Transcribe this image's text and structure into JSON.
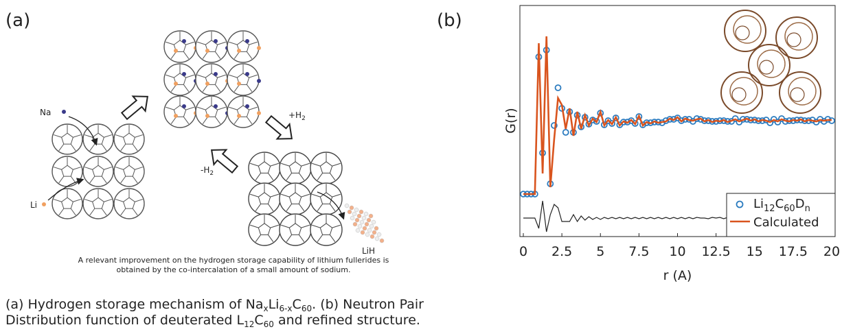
{
  "panel_a": {
    "label": "(a)",
    "na_label": "Na",
    "li_label": "Li",
    "plus_h2": [
      "+H",
      "2"
    ],
    "minus_h2": [
      "-H",
      "2"
    ],
    "lih_label": "LiH",
    "note": [
      "A relevant improvement on the hydrogen storage capability of lithium fullerides is",
      "obtained by the co-intercalation of a small amount of sodium."
    ]
  },
  "panel_b_label": "(b)",
  "caption": [
    [
      "(a) Hydrogen storage mechanism of Na",
      "x",
      "Li",
      "6-x",
      "C",
      "60",
      ". (b) Neutron Pair"
    ],
    [
      "Distribution function of deuterated L",
      "12",
      "C",
      "60",
      " and refined structure."
    ]
  ],
  "chart_data": {
    "type": "line",
    "xlabel": "r (A)",
    "ylabel": "G(r)",
    "xlim": [
      0,
      20
    ],
    "ylim": [
      -0.62,
      2.75
    ],
    "xticks": [
      0,
      2.5,
      5,
      7.5,
      10,
      12.5,
      15,
      17.5,
      20
    ],
    "legend": "lower right",
    "x": [
      0,
      0.25,
      0.5,
      0.75,
      1,
      1.25,
      1.5,
      1.75,
      2,
      2.25,
      2.5,
      2.75,
      3,
      3.25,
      3.5,
      3.75,
      4,
      4.25,
      4.5,
      4.75,
      5,
      5.25,
      5.5,
      5.75,
      6,
      6.25,
      6.5,
      6.75,
      7,
      7.25,
      7.5,
      7.75,
      8,
      8.25,
      8.5,
      8.75,
      9,
      9.25,
      9.5,
      9.75,
      10,
      10.25,
      10.5,
      10.75,
      11,
      11.25,
      11.5,
      11.75,
      12,
      12.25,
      12.5,
      12.75,
      13,
      13.25,
      13.5,
      13.75,
      14,
      14.25,
      14.5,
      14.75,
      15,
      15.25,
      15.5,
      15.75,
      16,
      16.25,
      16.5,
      16.75,
      17,
      17.25,
      17.5,
      17.75,
      18,
      18.25,
      18.5,
      18.75,
      19,
      19.25,
      19.5,
      19.75,
      20
    ],
    "series": [
      {
        "name": [
          "Li",
          "12",
          "C",
          "60",
          "D",
          "n"
        ],
        "color": "#2b7bbf",
        "marker": "circle",
        "values": [
          0,
          0,
          0,
          0,
          2.0,
          0.6,
          2.1,
          0.15,
          1.0,
          1.55,
          1.25,
          0.9,
          1.2,
          0.9,
          1.15,
          0.98,
          1.12,
          1.02,
          1.08,
          1.06,
          1.18,
          1.01,
          1.07,
          1.03,
          1.11,
          1.01,
          1.05,
          1.05,
          1.07,
          1.03,
          1.13,
          1.01,
          1.04,
          1.04,
          1.05,
          1.05,
          1.04,
          1.07,
          1.09,
          1.09,
          1.11,
          1.07,
          1.09,
          1.09,
          1.06,
          1.1,
          1.09,
          1.07,
          1.07,
          1.06,
          1.06,
          1.07,
          1.07,
          1.06,
          1.06,
          1.1,
          1.05,
          1.09,
          1.09,
          1.08,
          1.08,
          1.07,
          1.07,
          1.08,
          1.04,
          1.09,
          1.05,
          1.1,
          1.06,
          1.07,
          1.07,
          1.08,
          1.08,
          1.07,
          1.07,
          1.08,
          1.05,
          1.09,
          1.06,
          1.09,
          1.07
        ]
      },
      {
        "name": "Calculated",
        "color": "#d9541e",
        "marker": "line",
        "values": [
          0,
          0,
          0,
          0,
          2.2,
          0.3,
          2.3,
          0.1,
          0.8,
          1.4,
          1.3,
          0.95,
          1.25,
          0.85,
          1.2,
          0.95,
          1.15,
          1.0,
          1.1,
          1.05,
          1.2,
          1.0,
          1.08,
          1.02,
          1.12,
          1.0,
          1.06,
          1.04,
          1.08,
          1.02,
          1.14,
          1.0,
          1.05,
          1.03,
          1.06,
          1.04,
          1.05,
          1.06,
          1.1,
          1.08,
          1.12,
          1.06,
          1.1,
          1.08,
          1.07,
          1.09,
          1.1,
          1.06,
          1.08,
          1.05,
          1.07,
          1.06,
          1.08,
          1.05,
          1.07,
          1.09,
          1.06,
          1.08,
          1.1,
          1.07,
          1.09,
          1.06,
          1.08,
          1.07,
          1.05,
          1.08,
          1.06,
          1.09,
          1.07,
          1.06,
          1.08,
          1.07,
          1.09,
          1.06,
          1.08,
          1.07,
          1.06,
          1.08,
          1.07,
          1.08,
          1.08
        ]
      },
      {
        "color": "#222222",
        "marker": "line",
        "values": [
          -0.35,
          -0.35,
          -0.35,
          -0.35,
          -0.5,
          -0.1,
          -0.55,
          -0.3,
          -0.15,
          -0.2,
          -0.4,
          -0.4,
          -0.4,
          -0.3,
          -0.4,
          -0.32,
          -0.38,
          -0.33,
          -0.37,
          -0.34,
          -0.37,
          -0.34,
          -0.36,
          -0.34,
          -0.36,
          -0.34,
          -0.36,
          -0.34,
          -0.36,
          -0.34,
          -0.36,
          -0.34,
          -0.36,
          -0.34,
          -0.36,
          -0.34,
          -0.36,
          -0.34,
          -0.36,
          -0.34,
          -0.36,
          -0.34,
          -0.36,
          -0.34,
          -0.36,
          -0.34,
          -0.35,
          -0.35,
          -0.36,
          -0.34,
          -0.35,
          -0.34,
          -0.36,
          -0.34,
          -0.35,
          -0.34,
          -0.36,
          -0.34,
          -0.35,
          -0.34,
          -0.35,
          -0.34,
          -0.36,
          -0.34,
          -0.35,
          -0.34,
          -0.36,
          -0.34,
          -0.35,
          -0.34,
          -0.35,
          -0.34,
          -0.35,
          -0.34,
          -0.35,
          -0.34,
          -0.35,
          -0.34,
          -0.35,
          -0.34,
          -0.35
        ]
      }
    ]
  }
}
